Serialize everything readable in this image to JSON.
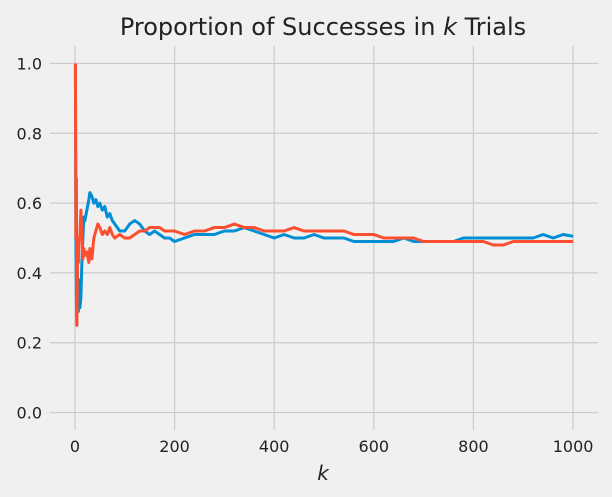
{
  "chart_data": {
    "type": "line",
    "title_prefix": "Proportion of Successes in ",
    "title_var": "k",
    "title_suffix": " Trials",
    "xlabel": "k",
    "ylabel": "",
    "xlim": [
      -50,
      1050
    ],
    "ylim": [
      -0.05,
      1.05
    ],
    "xticks": [
      0,
      200,
      400,
      600,
      800,
      1000
    ],
    "yticks": [
      0.0,
      0.2,
      0.4,
      0.6,
      0.8,
      1.0
    ],
    "xtick_labels": [
      "0",
      "200",
      "400",
      "600",
      "800",
      "1000"
    ],
    "ytick_labels": [
      "0.0",
      "0.2",
      "0.4",
      "0.6",
      "0.8",
      "1.0"
    ],
    "grid": true,
    "legend": false,
    "series": [
      {
        "color": "#008fd5",
        "x": [
          1,
          2,
          3,
          4,
          5,
          6,
          7,
          8,
          10,
          12,
          14,
          16,
          18,
          20,
          24,
          28,
          30,
          34,
          38,
          42,
          46,
          50,
          55,
          60,
          65,
          70,
          75,
          80,
          90,
          100,
          110,
          120,
          130,
          140,
          150,
          160,
          170,
          180,
          190,
          200,
          220,
          240,
          260,
          280,
          300,
          320,
          340,
          360,
          380,
          400,
          420,
          440,
          460,
          480,
          500,
          520,
          540,
          560,
          580,
          600,
          620,
          640,
          660,
          680,
          700,
          720,
          740,
          760,
          780,
          800,
          820,
          840,
          860,
          880,
          900,
          920,
          940,
          960,
          980,
          1000
        ],
        "y": [
          1.0,
          0.5,
          0.33,
          0.25,
          0.4,
          0.33,
          0.29,
          0.38,
          0.3,
          0.33,
          0.43,
          0.5,
          0.56,
          0.55,
          0.58,
          0.61,
          0.63,
          0.62,
          0.6,
          0.61,
          0.59,
          0.6,
          0.58,
          0.59,
          0.56,
          0.57,
          0.55,
          0.54,
          0.52,
          0.52,
          0.54,
          0.55,
          0.54,
          0.52,
          0.51,
          0.52,
          0.51,
          0.5,
          0.5,
          0.49,
          0.5,
          0.51,
          0.51,
          0.51,
          0.52,
          0.52,
          0.53,
          0.52,
          0.51,
          0.5,
          0.51,
          0.5,
          0.5,
          0.51,
          0.5,
          0.5,
          0.5,
          0.49,
          0.49,
          0.49,
          0.49,
          0.49,
          0.5,
          0.49,
          0.49,
          0.49,
          0.49,
          0.49,
          0.5,
          0.5,
          0.5,
          0.5,
          0.5,
          0.5,
          0.5,
          0.5,
          0.51,
          0.5,
          0.51,
          0.505
        ]
      },
      {
        "color": "#fc4f30",
        "x": [
          1,
          2,
          3,
          4,
          5,
          6,
          7,
          8,
          10,
          12,
          14,
          16,
          18,
          20,
          24,
          28,
          30,
          34,
          38,
          42,
          46,
          50,
          55,
          60,
          65,
          70,
          75,
          80,
          90,
          100,
          110,
          120,
          130,
          140,
          150,
          160,
          170,
          180,
          190,
          200,
          220,
          240,
          260,
          280,
          300,
          320,
          340,
          360,
          380,
          400,
          420,
          440,
          460,
          480,
          500,
          520,
          540,
          560,
          580,
          600,
          620,
          640,
          660,
          680,
          700,
          720,
          740,
          760,
          780,
          800,
          820,
          840,
          860,
          880,
          900,
          920,
          940,
          960,
          980,
          1000
        ],
        "y": [
          1.0,
          0.5,
          0.67,
          0.25,
          0.4,
          0.5,
          0.43,
          0.5,
          0.5,
          0.58,
          0.5,
          0.44,
          0.47,
          0.45,
          0.46,
          0.43,
          0.47,
          0.44,
          0.5,
          0.52,
          0.54,
          0.53,
          0.51,
          0.52,
          0.51,
          0.53,
          0.51,
          0.5,
          0.51,
          0.5,
          0.5,
          0.51,
          0.52,
          0.52,
          0.53,
          0.53,
          0.53,
          0.52,
          0.52,
          0.52,
          0.51,
          0.52,
          0.52,
          0.53,
          0.53,
          0.54,
          0.53,
          0.53,
          0.52,
          0.52,
          0.52,
          0.53,
          0.52,
          0.52,
          0.52,
          0.52,
          0.52,
          0.51,
          0.51,
          0.51,
          0.5,
          0.5,
          0.5,
          0.5,
          0.49,
          0.49,
          0.49,
          0.49,
          0.49,
          0.49,
          0.49,
          0.48,
          0.48,
          0.49,
          0.49,
          0.49,
          0.49,
          0.49,
          0.49,
          0.49
        ]
      }
    ]
  }
}
